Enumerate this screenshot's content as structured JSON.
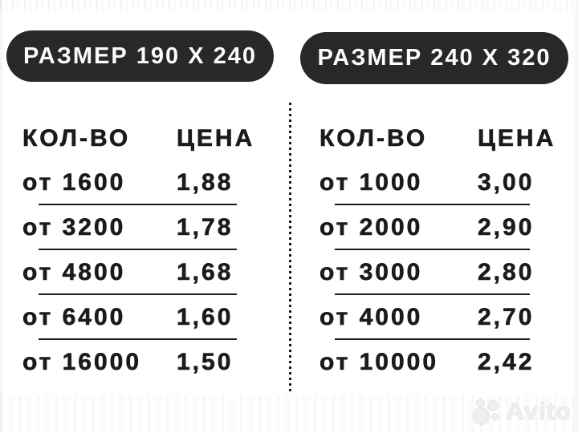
{
  "colors": {
    "background": "#ffffff",
    "pill_background": "#282828",
    "pill_text": "#fbfbfb",
    "table_text": "#1b1b1b",
    "divider": "#161616",
    "watermark": "#ececec"
  },
  "tables": [
    {
      "size_label": "РАЗМЕР 190 Х 240",
      "columns": {
        "quantity": "КОЛ-ВО",
        "price": "ЦЕНА"
      },
      "rows": [
        {
          "qty": "от 1600",
          "price": "1,88"
        },
        {
          "qty": "от 3200",
          "price": "1,78"
        },
        {
          "qty": "от 4800",
          "price": "1,68"
        },
        {
          "qty": "от 6400",
          "price": "1,60"
        },
        {
          "qty": "от 16000",
          "price": "1,50"
        }
      ]
    },
    {
      "size_label": "РАЗМЕР 240 Х 320",
      "columns": {
        "quantity": "КОЛ-ВО",
        "price": "ЦЕНА"
      },
      "rows": [
        {
          "qty": "от 1000",
          "price": "3,00"
        },
        {
          "qty": "от 2000",
          "price": "2,90"
        },
        {
          "qty": "от 3000",
          "price": "2,80"
        },
        {
          "qty": "от 4000",
          "price": "2,70"
        },
        {
          "qty": "от 10000",
          "price": "2,42"
        }
      ]
    }
  ],
  "watermark": {
    "label": "Avito"
  }
}
